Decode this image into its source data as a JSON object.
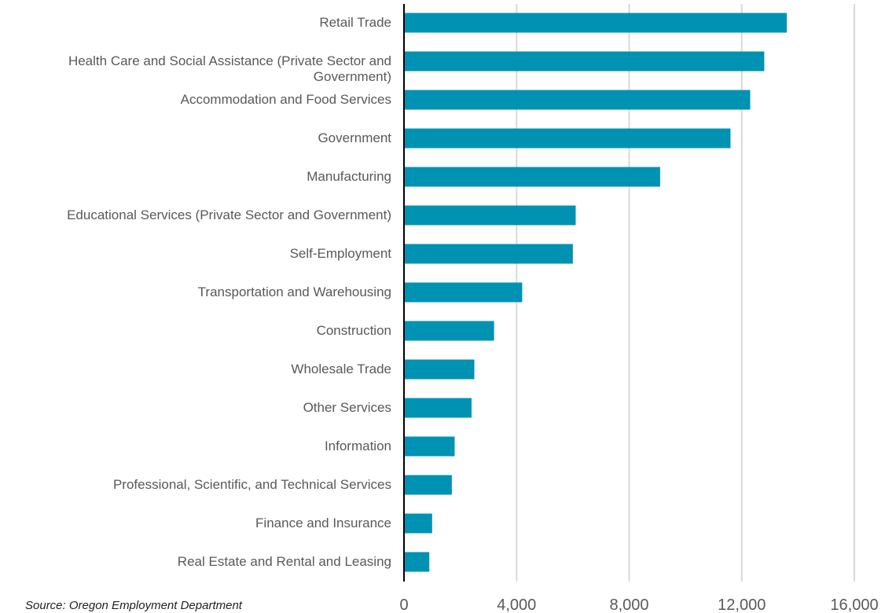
{
  "chart_data": {
    "type": "barh",
    "categories": [
      "Retail Trade",
      "Health Care and Social Assistance (Private Sector and Government)",
      "Accommodation and Food Services",
      "Government",
      "Manufacturing",
      "Educational Services (Private Sector and Government)",
      "Self-Employment",
      "Transportation and Warehousing",
      "Construction",
      "Wholesale Trade",
      "Other Services",
      "Information",
      "Professional, Scientific, and Technical Services",
      "Finance and Insurance",
      "Real Estate and Rental and Leasing"
    ],
    "values": [
      13600,
      12800,
      12300,
      11600,
      9100,
      6100,
      6000,
      4200,
      3200,
      2500,
      2400,
      1800,
      1700,
      1000,
      900
    ],
    "color": "#0092b3",
    "xlim": [
      0,
      16000
    ],
    "xticks": [
      0,
      {
        "value": 4000,
        "label": "4,000"
      },
      {
        "value": 8000,
        "label": "8,000"
      },
      {
        "value": 12000,
        "label": "12,000"
      },
      {
        "value": 16000,
        "label": "16,000"
      }
    ],
    "grid": true,
    "source": "Source: Oregon Employment Department"
  }
}
